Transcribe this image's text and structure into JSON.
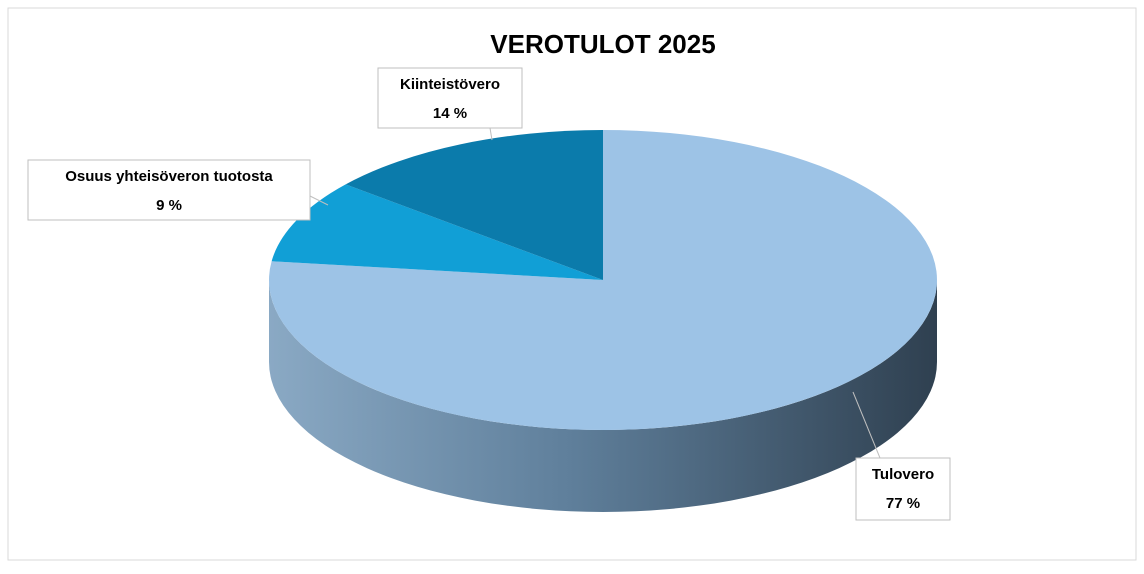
{
  "chart_data": {
    "type": "pie",
    "title": "VEROTULOT 2025",
    "categories": [
      "Tulovero",
      "Osuus yhteisöveron tuotosta",
      "Kiinteistövero"
    ],
    "values": [
      77,
      9,
      14
    ],
    "value_labels": [
      "77 %",
      "9 %",
      "14 %"
    ],
    "colors": [
      "#9dc3e6",
      "#119fd6",
      "#0b7bab"
    ]
  }
}
